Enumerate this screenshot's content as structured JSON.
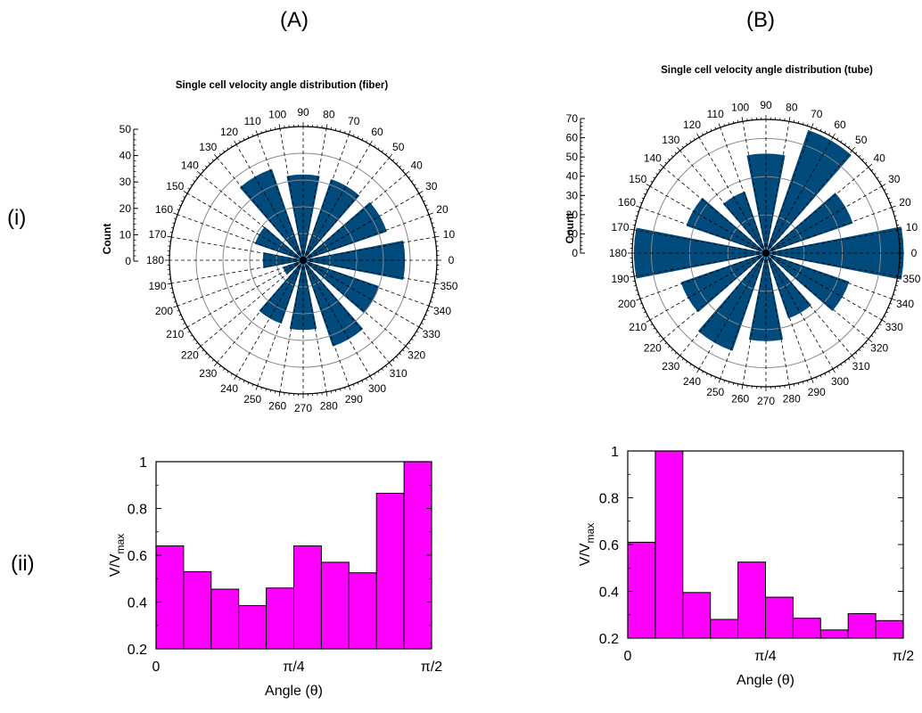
{
  "panels": {
    "A": {
      "letter": "(A)"
    },
    "B": {
      "letter": "(B)"
    }
  },
  "rows": {
    "i": "(i)",
    "ii": "(ii)"
  },
  "colors": {
    "polar_bar": "#004a7c",
    "hist_bar": "#ff00ff",
    "axis": "#000000",
    "grid_circle": "#888888"
  },
  "chart_data": [
    {
      "id": "A-i",
      "type": "polar-bar",
      "title": "Single cell velocity angle distribution (fiber)",
      "ylabel": "Count",
      "rlim": [
        0,
        50
      ],
      "r_ticks": [
        0,
        10,
        20,
        30,
        40,
        50
      ],
      "rings": [
        10,
        20,
        30,
        40,
        50
      ],
      "grid": true,
      "angle_ticks": [
        0,
        10,
        20,
        30,
        40,
        50,
        60,
        70,
        80,
        90,
        100,
        110,
        120,
        130,
        140,
        150,
        160,
        170,
        180,
        190,
        200,
        210,
        220,
        230,
        240,
        250,
        260,
        270,
        280,
        290,
        300,
        310,
        320,
        330,
        340,
        350
      ],
      "bins": [
        {
          "angle": 0,
          "value": 38
        },
        {
          "angle": 30,
          "value": 33
        },
        {
          "angle": 60,
          "value": 32
        },
        {
          "angle": 90,
          "value": 32
        },
        {
          "angle": 120,
          "value": 36
        },
        {
          "angle": 150,
          "value": 19
        },
        {
          "angle": 180,
          "value": 15
        },
        {
          "angle": 210,
          "value": 8
        },
        {
          "angle": 240,
          "value": 25
        },
        {
          "angle": 270,
          "value": 26
        },
        {
          "angle": 300,
          "value": 34
        },
        {
          "angle": 330,
          "value": 30
        }
      ]
    },
    {
      "id": "B-i",
      "type": "polar-bar",
      "title": "Single cell velocity angle distribution (tube)",
      "ylabel": "Count",
      "rlim": [
        0,
        70
      ],
      "r_ticks": [
        0,
        10,
        20,
        30,
        40,
        50,
        60,
        70
      ],
      "rings": [
        20,
        40,
        60,
        70
      ],
      "grid": true,
      "angle_ticks": [
        0,
        10,
        20,
        30,
        40,
        50,
        60,
        70,
        80,
        90,
        100,
        110,
        120,
        130,
        140,
        150,
        160,
        170,
        180,
        190,
        200,
        210,
        220,
        230,
        240,
        250,
        260,
        270,
        280,
        290,
        300,
        310,
        320,
        330,
        340,
        350
      ],
      "bins": [
        {
          "angle": 0,
          "value": 72
        },
        {
          "angle": 30,
          "value": 48
        },
        {
          "angle": 60,
          "value": 68
        },
        {
          "angle": 90,
          "value": 52
        },
        {
          "angle": 120,
          "value": 34
        },
        {
          "angle": 150,
          "value": 44
        },
        {
          "angle": 180,
          "value": 69
        },
        {
          "angle": 210,
          "value": 47
        },
        {
          "angle": 240,
          "value": 54
        },
        {
          "angle": 270,
          "value": 46
        },
        {
          "angle": 300,
          "value": 36
        },
        {
          "angle": 330,
          "value": 46
        }
      ]
    },
    {
      "id": "A-ii",
      "type": "bar",
      "xlabel": "Angle (θ)",
      "ylabel_main": "V/V",
      "ylabel_sub": "max",
      "ylim": [
        0.2,
        1
      ],
      "y_ticks": [
        0.2,
        0.4,
        0.6,
        0.8,
        1
      ],
      "y_tick_labels": [
        "0.2",
        "0.4",
        "0.6",
        "0.8",
        "1"
      ],
      "x_ticks": [
        0,
        0.5,
        1
      ],
      "x_tick_labels": [
        "0",
        "π/4",
        "π/2"
      ],
      "values": [
        0.64,
        0.53,
        0.455,
        0.385,
        0.46,
        0.64,
        0.57,
        0.525,
        0.865,
        1.0
      ]
    },
    {
      "id": "B-ii",
      "type": "bar",
      "xlabel": "Angle (θ)",
      "ylabel_main": "V/V",
      "ylabel_sub": "max",
      "ylim": [
        0.2,
        1
      ],
      "y_ticks": [
        0.2,
        0.4,
        0.6,
        0.8,
        1
      ],
      "y_tick_labels": [
        "0.2",
        "0.4",
        "0.6",
        "0.8",
        "1"
      ],
      "x_ticks": [
        0,
        0.5,
        1
      ],
      "x_tick_labels": [
        "0",
        "π/4",
        "π/2"
      ],
      "values": [
        0.61,
        1.0,
        0.395,
        0.28,
        0.525,
        0.375,
        0.285,
        0.235,
        0.305,
        0.275
      ]
    }
  ]
}
